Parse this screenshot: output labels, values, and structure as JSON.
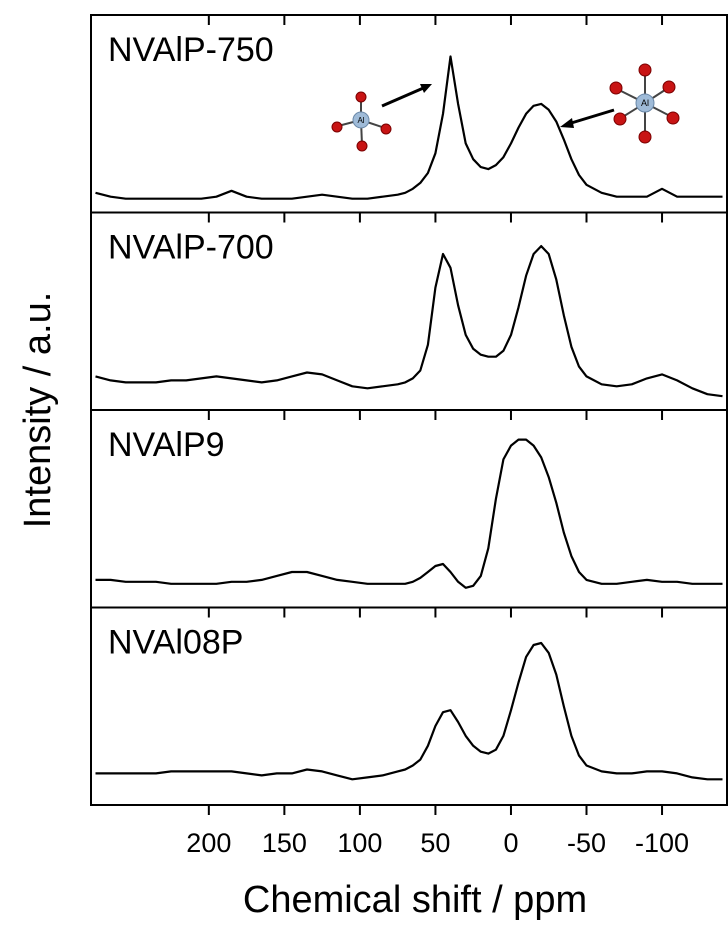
{
  "chart_data": {
    "type": "line",
    "xlabel": "Chemical shift / ppm",
    "ylabel": "Intensity / a.u.",
    "xlim": [
      278,
      -143
    ],
    "xticks": [
      200,
      150,
      100,
      50,
      0,
      -50,
      -100
    ],
    "ylim": [
      0,
      100
    ],
    "color": "#000000",
    "annotations": [
      "Al",
      "Al"
    ],
    "x": [
      275,
      265,
      255,
      245,
      235,
      225,
      215,
      205,
      195,
      185,
      175,
      165,
      155,
      145,
      135,
      125,
      115,
      105,
      95,
      85,
      75,
      70,
      65,
      60,
      55,
      50,
      45,
      40,
      35,
      30,
      25,
      20,
      15,
      10,
      5,
      0,
      -5,
      -10,
      -15,
      -20,
      -25,
      -30,
      -35,
      -40,
      -45,
      -50,
      -60,
      -70,
      -80,
      -90,
      -100,
      -110,
      -120,
      -130,
      -140
    ],
    "series": [
      {
        "name": "NVAlP-750",
        "values": [
          10,
          8,
          7,
          7,
          7,
          7,
          7,
          7,
          8,
          11,
          8,
          7,
          7,
          7,
          8,
          9,
          8,
          7,
          7,
          8,
          9,
          10,
          12,
          15,
          20,
          30,
          50,
          79,
          55,
          35,
          27,
          23,
          22,
          24,
          28,
          35,
          43,
          50,
          54,
          55,
          52,
          46,
          37,
          27,
          19,
          14,
          10,
          8,
          8,
          8,
          12,
          8,
          8,
          8,
          8
        ]
      },
      {
        "name": "NVAlP-700",
        "values": [
          17,
          15,
          14,
          14,
          14,
          15,
          15,
          16,
          17,
          16,
          15,
          14,
          15,
          17,
          19,
          18,
          15,
          12,
          11,
          12,
          13,
          14,
          16,
          20,
          33,
          62,
          79,
          72,
          53,
          38,
          31,
          28,
          27,
          27,
          30,
          38,
          52,
          68,
          79,
          83,
          79,
          66,
          48,
          32,
          22,
          17,
          13,
          12,
          13,
          16,
          18,
          15,
          11,
          8,
          7
        ]
      },
      {
        "name": "NVAlP9",
        "values": [
          14,
          14,
          13,
          13,
          13,
          12,
          12,
          12,
          12,
          13,
          13,
          14,
          16,
          18,
          18,
          16,
          14,
          13,
          12,
          12,
          12,
          12,
          13,
          15,
          18,
          21,
          22,
          18,
          13,
          10,
          11,
          16,
          30,
          55,
          75,
          82,
          85,
          85,
          82,
          76,
          66,
          53,
          38,
          26,
          18,
          14,
          12,
          12,
          13,
          14,
          13,
          13,
          12,
          12,
          12
        ]
      },
      {
        "name": "NVAl08P",
        "values": [
          16,
          16,
          16,
          16,
          16,
          17,
          17,
          17,
          17,
          17,
          16,
          15,
          16,
          16,
          18,
          17,
          15,
          13,
          14,
          15,
          17,
          18,
          20,
          23,
          30,
          40,
          47,
          48,
          42,
          35,
          30,
          27,
          26,
          28,
          35,
          48,
          62,
          75,
          81,
          82,
          77,
          66,
          50,
          35,
          25,
          20,
          17,
          16,
          16,
          17,
          17,
          16,
          14,
          13,
          13
        ]
      }
    ]
  }
}
